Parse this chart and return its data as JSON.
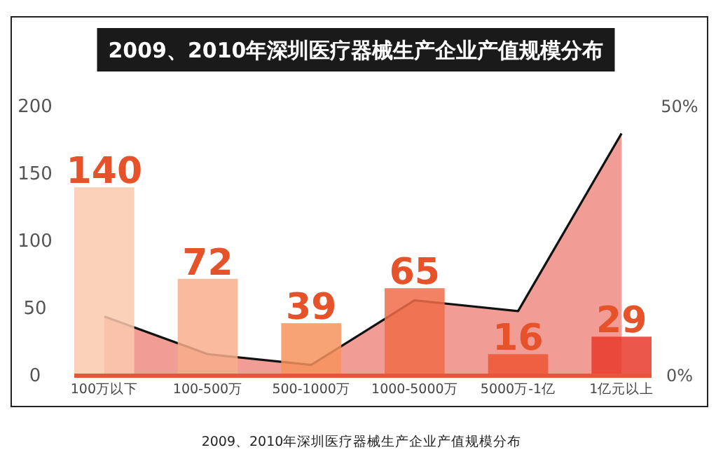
{
  "chart_data": {
    "type": "bar",
    "title": "2009、2010年深圳医疗器械生产企业产值规模分布",
    "categories": [
      "100万以下",
      "100-500万",
      "500-1000万",
      "1000-5000万",
      "5000万-1亿",
      "1亿元以上"
    ],
    "series": [
      {
        "type": "area",
        "axis": "y2",
        "color": "#f0928a",
        "values": [
          11,
          4,
          2,
          14,
          12,
          45
        ]
      },
      {
        "colors": [
          "#fcc9ae",
          "#f8ae8c",
          "#f7935e",
          "#f06c48",
          "#ee5533",
          "#e8392b"
        ],
        "values": [
          140,
          72,
          39,
          65,
          16,
          29
        ],
        "value_labels": [
          "140",
          "72",
          "39",
          "65",
          "16",
          "29"
        ]
      }
    ],
    "ylim": [
      0,
      200
    ],
    "yticks": [
      0,
      50,
      100,
      150,
      200
    ],
    "y2lim": [
      0,
      50
    ],
    "y2ticks": [
      {
        "value": 0,
        "label": "0%"
      },
      {
        "value": 50,
        "label": "50%"
      }
    ],
    "annotations": [
      "2009、2010年深圳医疗器械生产企业产值规模分布"
    ]
  }
}
